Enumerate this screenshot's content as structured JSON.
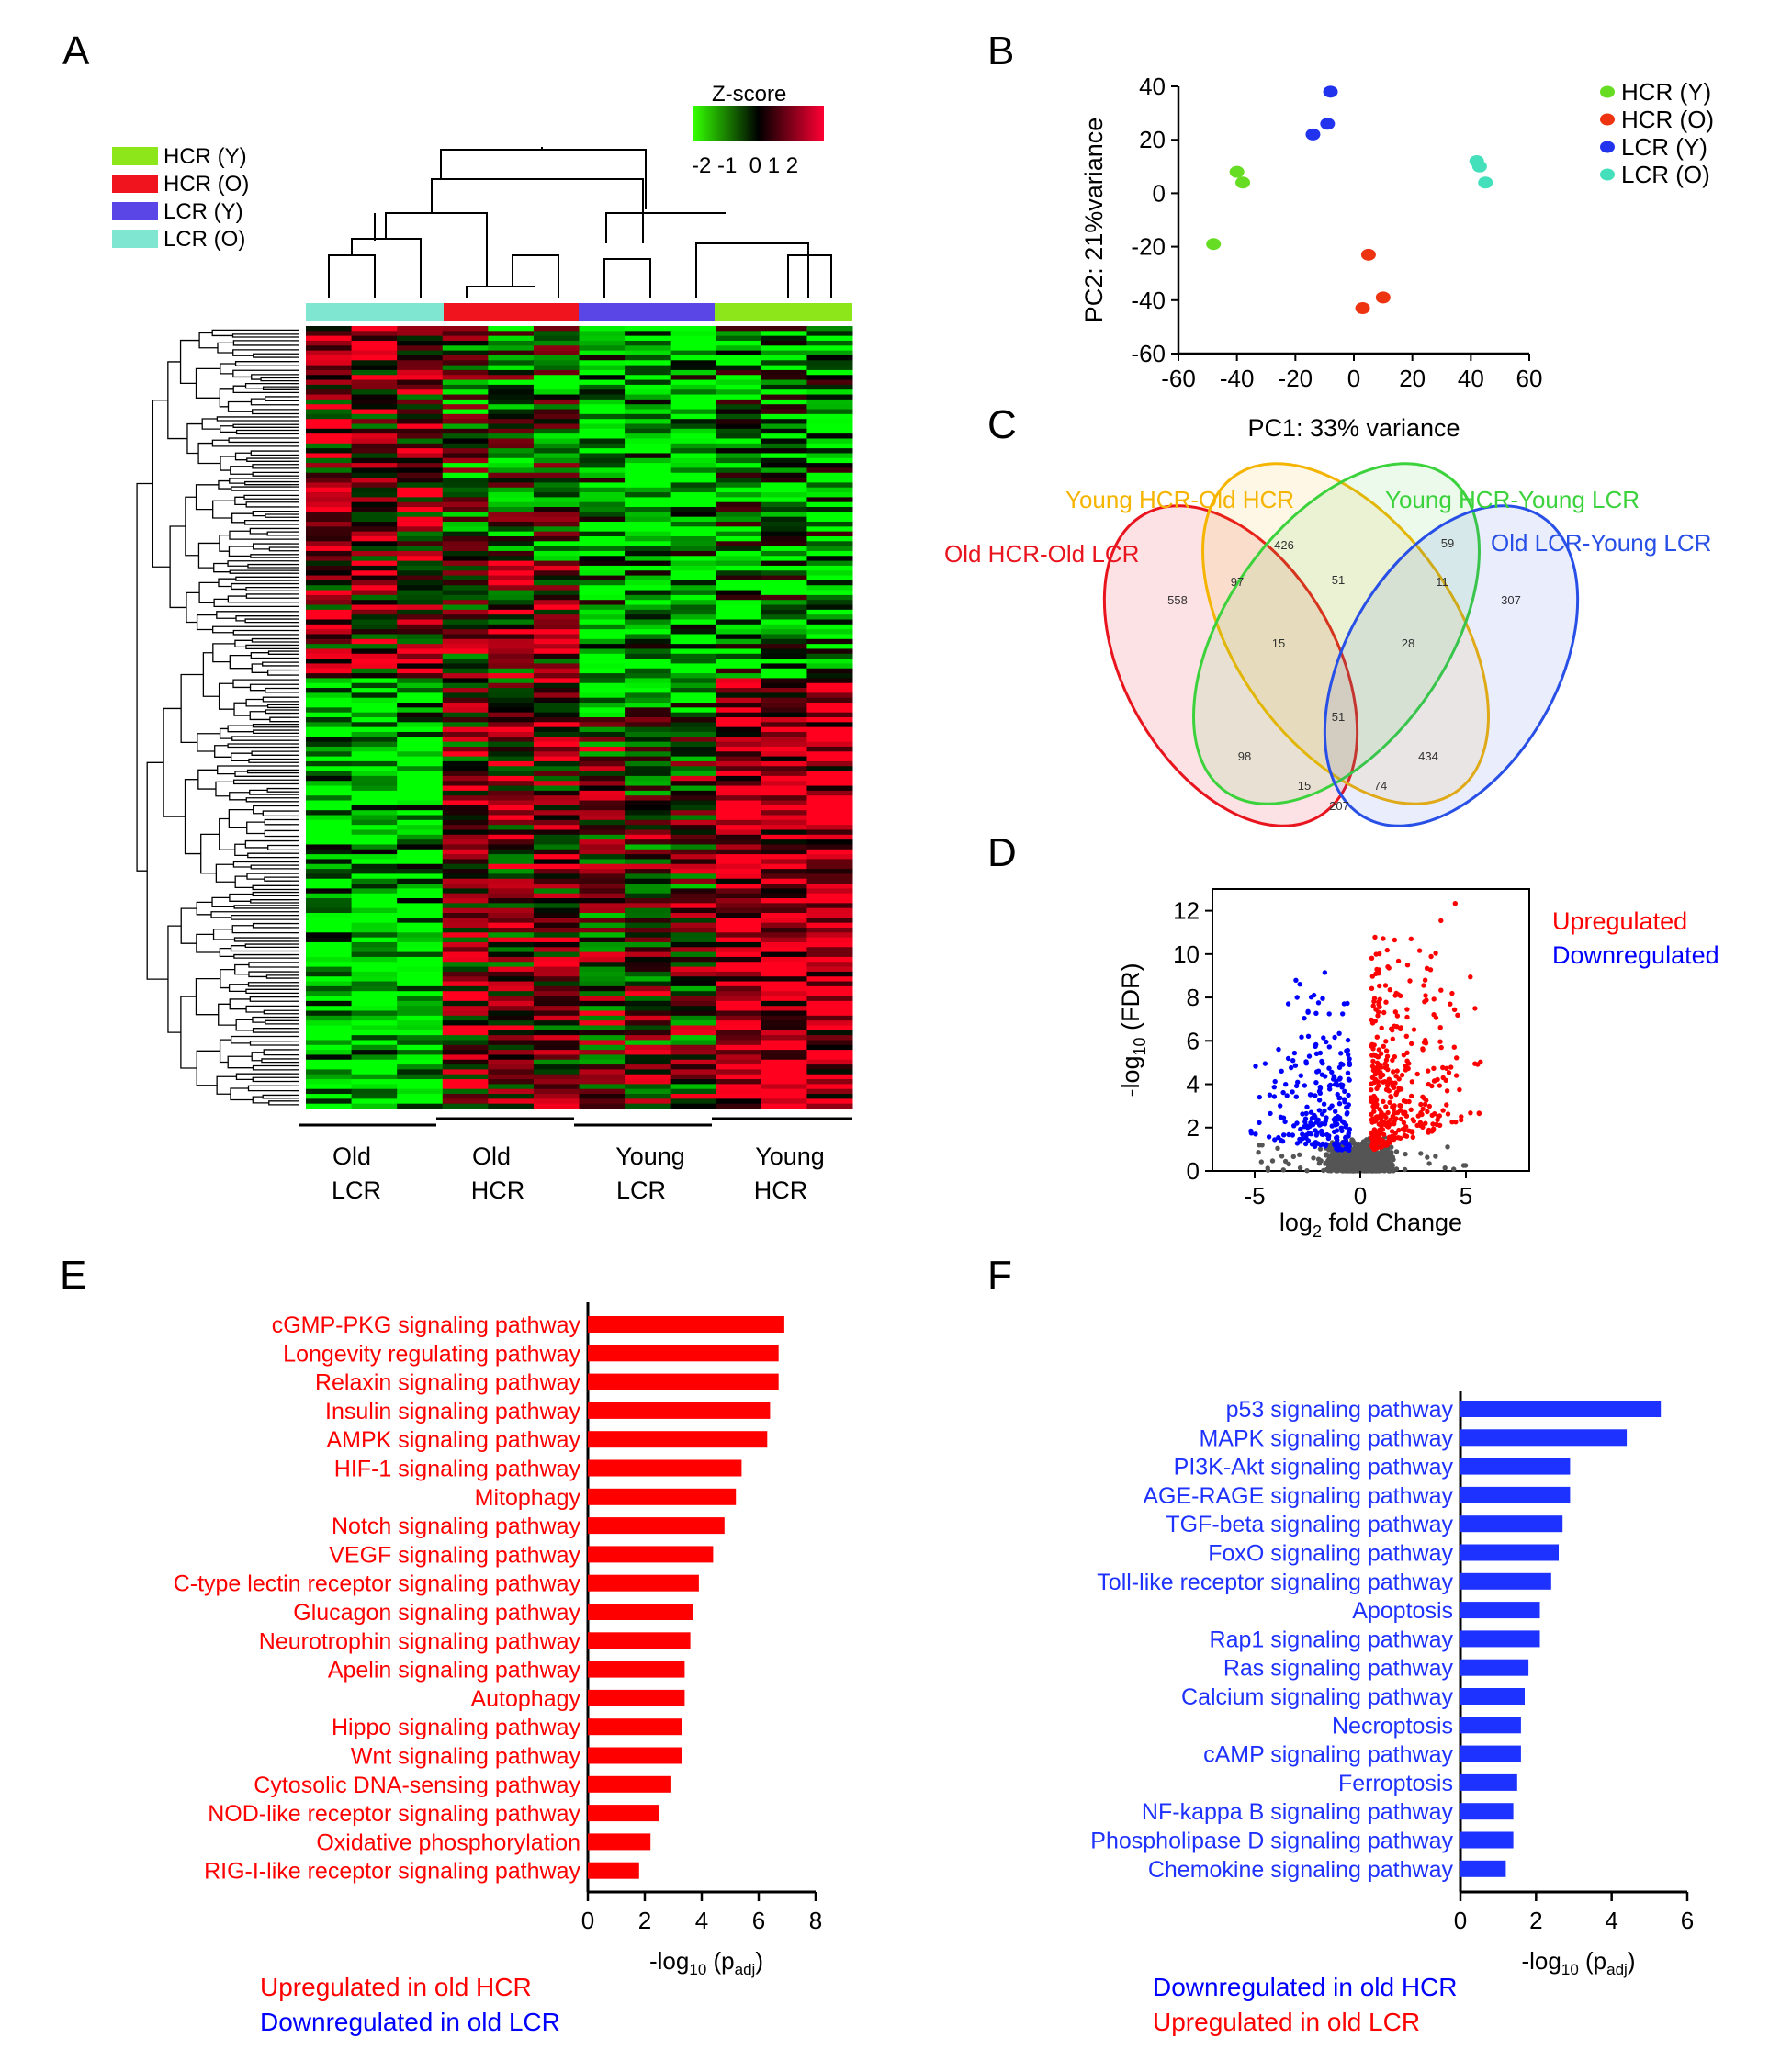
{
  "panels": {
    "A": "A",
    "B": "B",
    "C": "C",
    "D": "D",
    "E": "E",
    "F": "F"
  },
  "colors": {
    "hcr_y": "#8ce619",
    "hcr_o": "#f0141e",
    "lcr_y": "#5a46e6",
    "lcr_o": "#7fe6d2",
    "pca_hcr_y": "#66dd22",
    "pca_hcr_o": "#ee3311",
    "pca_lcr_y": "#2233ee",
    "pca_lcr_o": "#44e0bb",
    "venn_red": "#e8141e",
    "venn_orange": "#f5b400",
    "venn_green": "#3cd23c",
    "venn_blue": "#2850e6",
    "up": "#ff0000",
    "down": "#0000ff",
    "bar_red": "#ff0000",
    "bar_blue": "#1e32ff",
    "neutral": "#555555"
  },
  "heatmap": {
    "legend": [
      "HCR (Y)",
      "HCR (O)",
      "LCR (Y)",
      "LCR (O)"
    ],
    "zscore_title": "Z-score",
    "zscore_ticks": "-2 -1  0 1 2",
    "group_labels": [
      [
        "Old",
        "LCR"
      ],
      [
        "Old",
        "HCR"
      ],
      [
        "Young",
        "LCR"
      ],
      [
        "Young",
        "HCR"
      ]
    ]
  },
  "chart_data": [
    {
      "panel": "B",
      "type": "scatter",
      "xlabel": "PC1: 33% variance",
      "ylabel": "PC2: 21%variance",
      "xlim": [
        -60,
        60
      ],
      "ylim": [
        -60,
        40
      ],
      "xticks": [
        -60,
        -40,
        -20,
        0,
        20,
        40,
        60
      ],
      "yticks": [
        -60,
        -40,
        -20,
        0,
        20,
        40
      ],
      "legend_position": "top-right",
      "series": [
        {
          "name": "HCR (Y)",
          "points": [
            [
              -40,
              8
            ],
            [
              -38,
              4
            ],
            [
              -48,
              -19
            ]
          ]
        },
        {
          "name": "HCR (O)",
          "points": [
            [
              5,
              -23
            ],
            [
              3,
              -43
            ],
            [
              10,
              -39
            ]
          ]
        },
        {
          "name": "LCR (Y)",
          "points": [
            [
              -8,
              38
            ],
            [
              -9,
              26
            ],
            [
              -14,
              22
            ]
          ]
        },
        {
          "name": "LCR (O)",
          "points": [
            [
              42,
              12
            ],
            [
              43,
              10
            ],
            [
              45,
              4
            ]
          ]
        }
      ]
    },
    {
      "panel": "C",
      "type": "venn",
      "sets": [
        "Old HCR-Old LCR",
        "Young HCR-Old HCR",
        "Young HCR-Young LCR",
        "Old LCR-Young LCR"
      ],
      "counts": [
        "558",
        "426",
        "59",
        "307",
        "97",
        "51",
        "11",
        "15",
        "28",
        "51",
        "98",
        "434",
        "15",
        "74",
        "207"
      ]
    },
    {
      "panel": "D",
      "type": "scatter",
      "xlabel_main": "log",
      "xlabel_sub": "2",
      "xlabel_rest": " fold Change",
      "ylabel_pre": "-log",
      "ylabel_sub": "10",
      "ylabel_rest": " (FDR)",
      "xlim": [
        -7,
        8
      ],
      "ylim": [
        0,
        13
      ],
      "xticks": [
        -5,
        0,
        5
      ],
      "yticks": [
        0,
        2,
        4,
        6,
        8,
        10,
        12
      ],
      "legend": [
        "Upregulated",
        "Downregulated"
      ]
    },
    {
      "panel": "E",
      "type": "bar",
      "orientation": "horizontal",
      "xlabel_pre": "-log",
      "xlabel_sub1": "10",
      "xlabel_mid": " (p",
      "xlabel_sub2": "adj",
      "xlabel_end": ")",
      "xlim": [
        0,
        8
      ],
      "xticks": [
        0,
        2,
        4,
        6,
        8
      ],
      "categories": [
        "cGMP-PKG signaling pathway",
        "Longevity regulating pathway",
        "Relaxin signaling pathway",
        "Insulin signaling pathway",
        "AMPK signaling pathway",
        "HIF-1 signaling pathway",
        "Mitophagy",
        "Notch signaling pathway",
        "VEGF signaling pathway",
        "C-type lectin receptor signaling pathway",
        "Glucagon signaling pathway",
        "Neurotrophin signaling pathway",
        "Apelin signaling pathway",
        "Autophagy",
        "Hippo signaling pathway",
        "Wnt signaling pathway",
        "Cytosolic DNA-sensing pathway",
        "NOD-like receptor signaling pathway",
        "Oxidative phosphorylation",
        "RIG-I-like receptor signaling pathway"
      ],
      "values": [
        6.9,
        6.7,
        6.7,
        6.4,
        6.3,
        5.4,
        5.2,
        4.8,
        4.4,
        3.9,
        3.7,
        3.6,
        3.4,
        3.4,
        3.3,
        3.3,
        2.9,
        2.5,
        2.2,
        1.8
      ],
      "footnotes": [
        {
          "text": "Upregulated in old HCR",
          "color": "#ff0000"
        },
        {
          "text": "Downregulated in old LCR",
          "color": "#0000ff"
        }
      ]
    },
    {
      "panel": "F",
      "type": "bar",
      "orientation": "horizontal",
      "xlabel_pre": "-log",
      "xlabel_sub1": "10",
      "xlabel_mid": " (p",
      "xlabel_sub2": "adj",
      "xlabel_end": ")",
      "xlim": [
        0,
        6
      ],
      "xticks": [
        0,
        2,
        4,
        6
      ],
      "categories": [
        "p53 signaling pathway",
        "MAPK signaling pathway",
        "PI3K-Akt signaling pathway",
        "AGE-RAGE signaling pathway",
        "TGF-beta signaling pathway",
        "FoxO signaling pathway",
        "Toll-like receptor signaling pathway",
        "Apoptosis",
        "Rap1 signaling pathway",
        "Ras signaling pathway",
        "Calcium signaling pathway",
        "Necroptosis",
        "cAMP signaling pathway",
        "Ferroptosis",
        "NF-kappa B signaling pathway",
        "Phospholipase D signaling pathway",
        "Chemokine signaling pathway"
      ],
      "values": [
        5.3,
        4.4,
        2.9,
        2.9,
        2.7,
        2.6,
        2.4,
        2.1,
        2.1,
        1.8,
        1.7,
        1.6,
        1.6,
        1.5,
        1.4,
        1.4,
        1.2
      ],
      "footnotes": [
        {
          "text": "Downregulated in old HCR",
          "color": "#0000ff"
        },
        {
          "text": "Upregulated in old LCR",
          "color": "#ff0000"
        }
      ]
    }
  ]
}
